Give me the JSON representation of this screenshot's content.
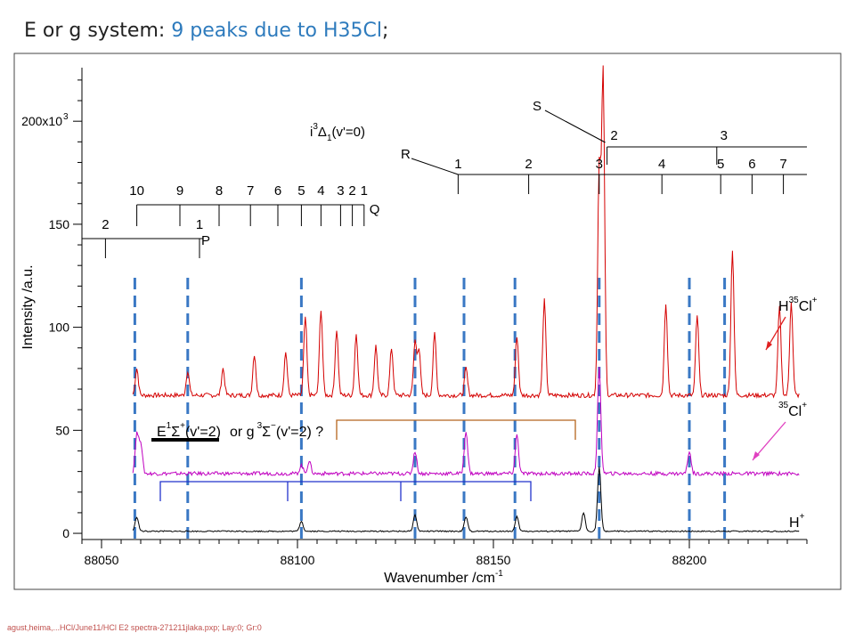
{
  "title": {
    "prefix": "E or g system: ",
    "highlight": "9 peaks due to H35Cl",
    "suffix": ";"
  },
  "footer": "agust,heima,...HCl/June11/HCl  E2 spectra-271211jlaka.pxp; Lay:0; Gr:0",
  "colors": {
    "h35cl_trace": "#d40000",
    "cl35_trace": "#c000c0",
    "h_trace": "#000000",
    "marker_line": "#3a78c4",
    "pointer_h35cl": "#e02020",
    "pointer_cl35": "#e040c0",
    "bracket_brown": "#b5651d",
    "bracket_blue": "#2233cc"
  },
  "chart_data": {
    "type": "line",
    "xlabel": "Wavenumber  /cm",
    "xlabel_sup": "-1",
    "ylabel": "Intensity  /a.u.",
    "xlim": [
      88045,
      88230
    ],
    "ylim": [
      -3,
      226
    ],
    "x_ticks": [
      88050,
      88100,
      88150,
      88200
    ],
    "x_tick_labels": [
      "88050",
      "88100",
      "88150",
      "88200"
    ],
    "y_ticks": [
      0,
      50,
      100,
      150,
      200
    ],
    "y_tick_labels": [
      "0",
      "50",
      "100",
      "150",
      "200x10"
    ],
    "y_tick_top_sup": "3",
    "series": [
      {
        "name": "H35Cl+",
        "baseline": 67,
        "peaks": [
          {
            "x": 88059,
            "h": 80
          },
          {
            "x": 88072,
            "h": 79
          },
          {
            "x": 88081,
            "h": 80
          },
          {
            "x": 88089,
            "h": 87
          },
          {
            "x": 88097,
            "h": 88
          },
          {
            "x": 88102,
            "h": 105
          },
          {
            "x": 88106,
            "h": 109
          },
          {
            "x": 88110,
            "h": 99
          },
          {
            "x": 88115,
            "h": 97
          },
          {
            "x": 88120,
            "h": 91
          },
          {
            "x": 88124,
            "h": 90
          },
          {
            "x": 88130,
            "h": 93
          },
          {
            "x": 88131,
            "h": 89
          },
          {
            "x": 88135,
            "h": 97
          },
          {
            "x": 88143,
            "h": 80
          },
          {
            "x": 88156,
            "h": 96
          },
          {
            "x": 88163,
            "h": 113
          },
          {
            "x": 88177,
            "h": 178
          },
          {
            "x": 88178,
            "h": 222
          },
          {
            "x": 88194,
            "h": 112
          },
          {
            "x": 88202,
            "h": 106
          },
          {
            "x": 88211,
            "h": 138
          },
          {
            "x": 88223,
            "h": 110
          },
          {
            "x": 88226,
            "h": 113
          }
        ]
      },
      {
        "name": "35Cl+",
        "baseline": 29,
        "peaks": [
          {
            "x": 88059,
            "h": 48
          },
          {
            "x": 88060,
            "h": 44
          },
          {
            "x": 88101,
            "h": 33
          },
          {
            "x": 88103,
            "h": 35
          },
          {
            "x": 88130,
            "h": 40
          },
          {
            "x": 88143,
            "h": 50
          },
          {
            "x": 88156,
            "h": 48
          },
          {
            "x": 88177,
            "h": 80
          },
          {
            "x": 88200,
            "h": 40
          }
        ]
      },
      {
        "name": "H+",
        "baseline": 1,
        "peaks": [
          {
            "x": 88059,
            "h": 8
          },
          {
            "x": 88101,
            "h": 6
          },
          {
            "x": 88130,
            "h": 9
          },
          {
            "x": 88143,
            "h": 8
          },
          {
            "x": 88156,
            "h": 8
          },
          {
            "x": 88173,
            "h": 10
          },
          {
            "x": 88177,
            "h": 32
          }
        ]
      }
    ],
    "series_labels": [
      {
        "main": "H",
        "sup": "35",
        "mid": "Cl",
        "sup2": "+"
      },
      {
        "sup": "35",
        "main": "Cl",
        "sup2": "+"
      },
      {
        "main": "H",
        "sup2": "+"
      }
    ],
    "dashed_markers_x": [
      88058.5,
      88072,
      88101,
      88130,
      88142.5,
      88155.5,
      88177,
      88200,
      88209
    ],
    "annotations": {
      "i_state": {
        "pre": "i",
        "sup": "3",
        "mid": "Δ",
        "sub": "1",
        "post": "(v'=0)"
      },
      "e_state": {
        "pre": "E",
        "sup": "1",
        "sym": "Σ",
        "sup2": "+",
        "post": "(v'=2)"
      },
      "or_g": {
        "text": "or g",
        "sup": "3",
        "sym": "Σ",
        "sup2": "−",
        "post": "(v'=2) ?"
      }
    },
    "branches": {
      "S": {
        "label": "S",
        "lines": [
          {
            "x": 88179,
            "label": "2"
          },
          {
            "x": 88207,
            "label": "3"
          }
        ]
      },
      "R": {
        "label": "R",
        "lines": [
          {
            "x": 88141,
            "label": "1"
          },
          {
            "x": 88159,
            "label": "2"
          },
          {
            "x": 88177,
            "label": "3"
          },
          {
            "x": 88193,
            "label": "4"
          },
          {
            "x": 88208,
            "label": "5"
          },
          {
            "x": 88216,
            "label": "6"
          },
          {
            "x": 88224,
            "label": "7"
          }
        ]
      },
      "Q": {
        "label": "Q",
        "lines": [
          {
            "x": 88059,
            "label": "10"
          },
          {
            "x": 88070,
            "label": "9"
          },
          {
            "x": 88080,
            "label": "8"
          },
          {
            "x": 88088,
            "label": "7"
          },
          {
            "x": 88095,
            "label": "6"
          },
          {
            "x": 88101,
            "label": "5"
          },
          {
            "x": 88106,
            "label": "4"
          },
          {
            "x": 88111,
            "label": "3"
          },
          {
            "x": 88114,
            "label": "2"
          },
          {
            "x": 88117,
            "label": "1"
          }
        ]
      },
      "P": {
        "label": "P",
        "lines": [
          {
            "x": 88051,
            "label": "2"
          },
          {
            "x": 88075,
            "label": "1"
          }
        ]
      }
    }
  }
}
